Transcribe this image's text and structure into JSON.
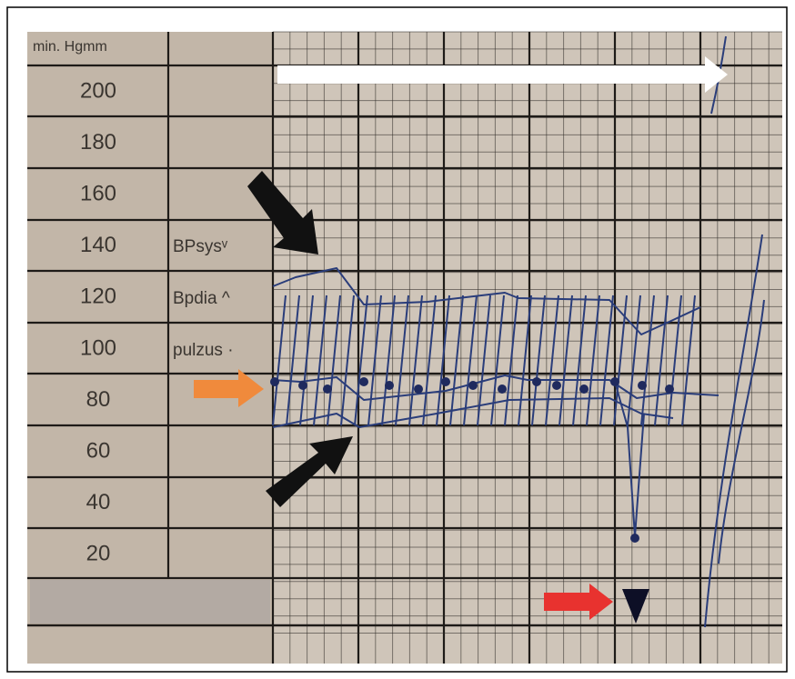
{
  "header": {
    "unit": "min. Hgmm"
  },
  "scale": {
    "rows": [
      200,
      180,
      160,
      140,
      120,
      100,
      80,
      60,
      40,
      20
    ]
  },
  "legend": {
    "items": [
      "BPsysᵛ",
      "Bpdia ^",
      "pulzus ·"
    ]
  }
}
